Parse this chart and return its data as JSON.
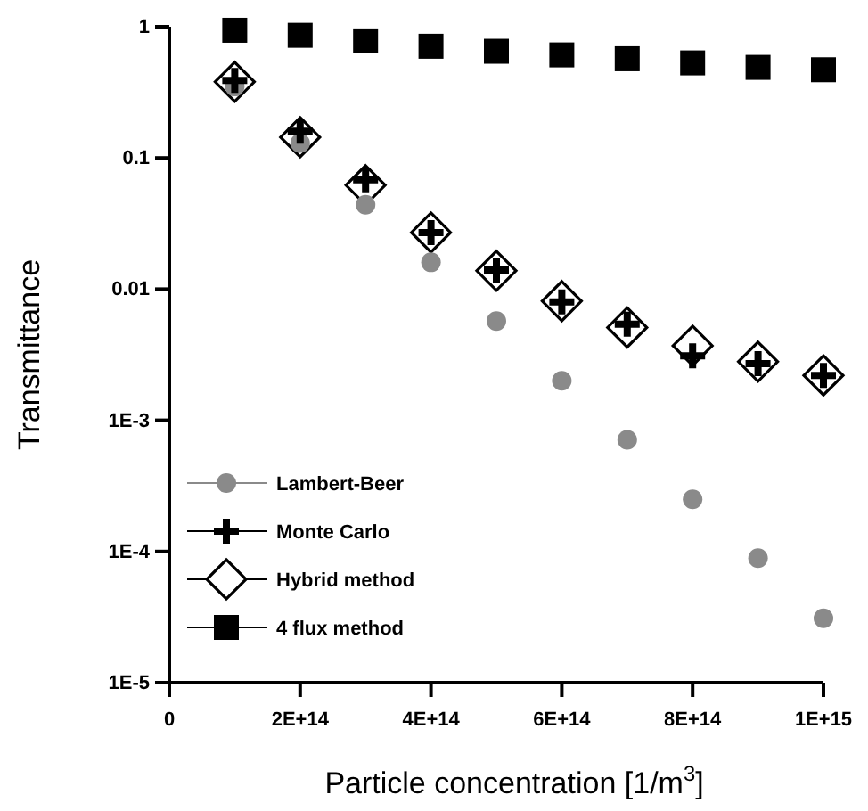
{
  "chart_data": {
    "type": "scatter",
    "xlabel": "Particle concentration [1/m$^{3}$]",
    "ylabel": "Transmittance",
    "log": "y",
    "x": [
      100000000000000.0,
      200000000000000.0,
      300000000000000.0,
      400000000000000.0,
      500000000000000.0,
      600000000000000.0,
      700000000000000.0,
      800000000000000.0,
      900000000000000.0,
      1000000000000000.0
    ],
    "xlim": [
      0,
      1000000000000000.0
    ],
    "xticks": [
      0,
      {
        "value": 200000000000000.0,
        "label": "2E+14"
      },
      {
        "value": 400000000000000.0,
        "label": "4E+14"
      },
      {
        "value": 600000000000000.0,
        "label": "6E+14"
      },
      {
        "value": 800000000000000.0,
        "label": "8E+14"
      },
      {
        "value": 1000000000000000.0,
        "label": "1E+15"
      }
    ],
    "ylim": [
      1e-05,
      1
    ],
    "yticks": [
      1,
      0.1,
      0.01,
      {
        "value": 0.001,
        "label": "1E-3"
      },
      {
        "value": 0.0001,
        "label": "1E-4"
      },
      {
        "value": 1e-05,
        "label": "1E-5"
      }
    ],
    "grid": false,
    "legend": "bottom left",
    "series": [
      {
        "name": "Lambert-Beer",
        "color": "#8a8a8a",
        "marker": "circle",
        "values": [
          0.35,
          0.13,
          0.044,
          0.016,
          0.0057,
          0.002,
          0.00071,
          0.00025,
          8.9e-05,
          3.1e-05
        ]
      },
      {
        "name": "Monte Carlo",
        "color": "#000000",
        "marker": "cross",
        "values": [
          0.39,
          0.16,
          0.068,
          0.027,
          0.014,
          0.008,
          0.0054,
          0.0031,
          0.0027,
          0.0022
        ]
      },
      {
        "name": "Hybrid method",
        "color": "#000000",
        "marker": "diamond",
        "values": [
          0.38,
          0.144,
          0.062,
          0.027,
          0.0138,
          0.0081,
          0.0051,
          0.0037,
          0.0028,
          0.0022
        ]
      },
      {
        "name": "4 flux method",
        "color": "#000000",
        "marker": "square",
        "values": [
          0.94,
          0.86,
          0.78,
          0.71,
          0.65,
          0.61,
          0.57,
          0.53,
          0.49,
          0.47
        ]
      }
    ]
  }
}
